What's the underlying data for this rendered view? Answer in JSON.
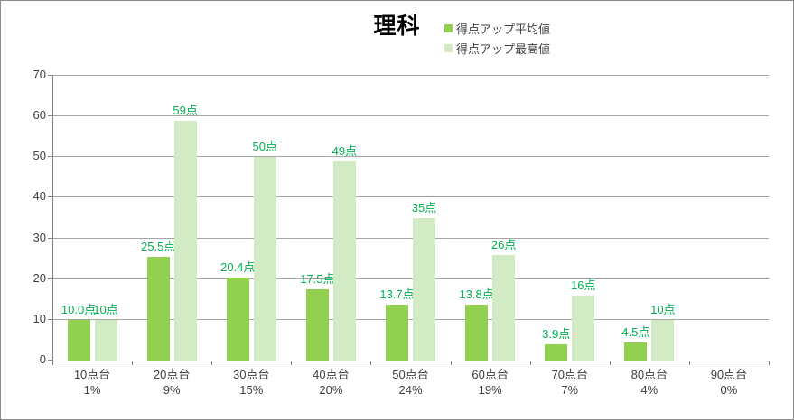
{
  "title": "理科",
  "legend": [
    {
      "label": "得点アップ平均値",
      "color": "#92D050"
    },
    {
      "label": "得点アップ最高値",
      "color": "#D2EBC4"
    }
  ],
  "chart_data": {
    "type": "bar",
    "title": "理科",
    "categories": [
      "10点台",
      "20点台",
      "30点台",
      "40点台",
      "50点台",
      "60点台",
      "70点台",
      "80点台",
      "90点台"
    ],
    "category_percents": [
      "1%",
      "9%",
      "15%",
      "20%",
      "24%",
      "19%",
      "7%",
      "4%",
      "0%"
    ],
    "series": [
      {
        "name": "得点アップ平均値",
        "color": "#92D050",
        "values": [
          10.0,
          25.5,
          20.4,
          17.5,
          13.7,
          13.8,
          3.9,
          4.5,
          0
        ],
        "labels": [
          "10.0点",
          "25.5点",
          "20.4点",
          "17.5点",
          "13.7点",
          "13.8点",
          "3.9点",
          "4.5点",
          ""
        ]
      },
      {
        "name": "得点アップ最高値",
        "color": "#D2EBC4",
        "values": [
          10,
          59,
          50,
          49,
          35,
          26,
          16,
          10,
          0
        ],
        "labels": [
          "10点",
          "59点",
          "50点",
          "49点",
          "35点",
          "26点",
          "16点",
          "10点",
          ""
        ]
      }
    ],
    "ylim": [
      0,
      70
    ],
    "yticks": [
      0,
      10,
      20,
      30,
      40,
      50,
      60,
      70
    ],
    "grid": true,
    "legend_position": "top-center",
    "colors": {
      "data_label": "#00B050",
      "gridline": "#A6A6A6",
      "axis": "#808080",
      "axis_text": "#404040"
    }
  }
}
